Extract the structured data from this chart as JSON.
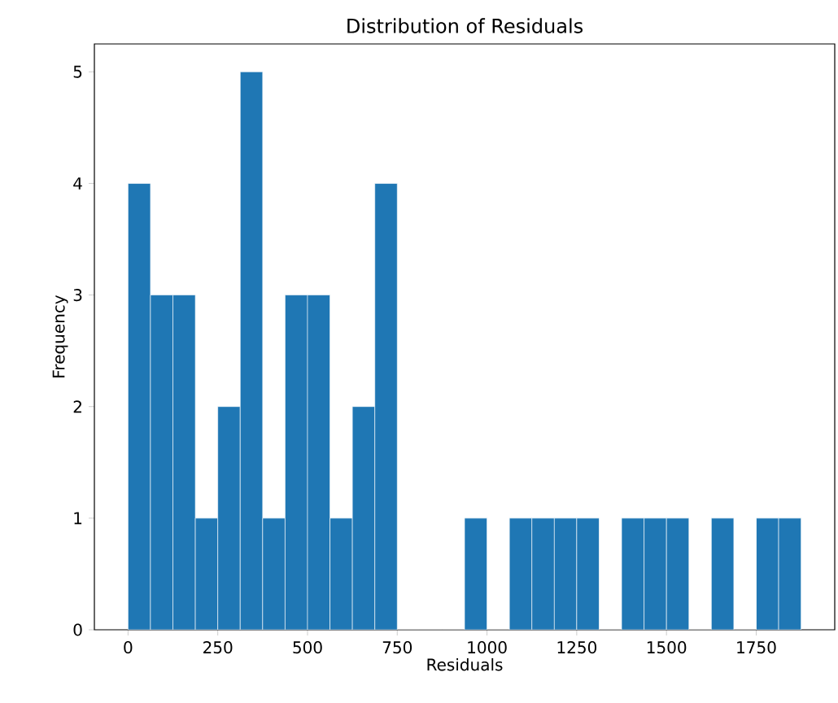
{
  "chart_data": {
    "type": "histogram",
    "title": "Distribution of Residuals",
    "xlabel": "Residuals",
    "ylabel": "Frequency",
    "color": "#1f77b4",
    "bins": [
      0,
      62.5,
      125,
      187.5,
      250,
      312.5,
      375,
      437.5,
      500,
      562.5,
      625,
      687.5,
      750,
      812.5,
      875,
      937.5,
      1000,
      1062.5,
      1125,
      1187.5,
      1250,
      1312.5,
      1375,
      1437.5,
      1500,
      1562.5,
      1625,
      1687.5,
      1750,
      1812.5,
      1875
    ],
    "values": [
      4,
      3,
      3,
      1,
      2,
      5,
      1,
      3,
      3,
      1,
      2,
      4,
      0,
      0,
      0,
      1,
      0,
      1,
      1,
      1,
      1,
      0,
      1,
      1,
      1,
      0,
      1,
      0,
      1,
      1
    ],
    "xlim": [
      -93.75,
      1968.75
    ],
    "ylim": [
      0,
      5.25
    ],
    "xticks": [
      0,
      250,
      500,
      750,
      1000,
      1250,
      1500,
      1750
    ],
    "yticks": [
      0,
      1,
      2,
      3,
      4,
      5
    ]
  }
}
